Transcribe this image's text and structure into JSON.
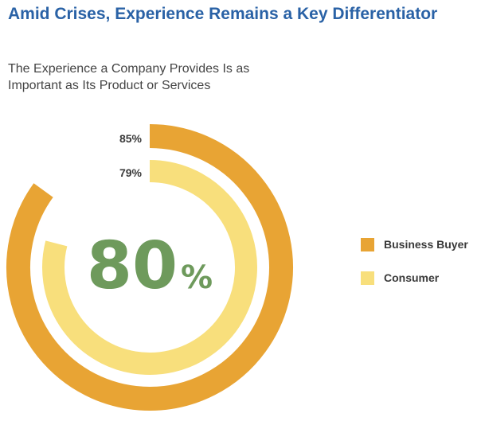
{
  "title": "Amid Crises, Experience Remains a Key Differentiator",
  "subtitle": "The Experience a Company Provides Is as Important as Its Product or Services",
  "center": {
    "value": "80",
    "unit": "%"
  },
  "colors": {
    "title": "#2a62a6",
    "business_buyer": "#e8a434",
    "consumer": "#f8df7c",
    "center_text": "#6e9a5c",
    "label_text": "#3a3a3a"
  },
  "chart_data": {
    "type": "radial-bar",
    "title": "The Experience a Company Provides Is as Important as Its Product or Services",
    "unit": "%",
    "max": 100,
    "series": [
      {
        "name": "Business Buyer",
        "value": 85,
        "label": "85%",
        "color": "#e8a434"
      },
      {
        "name": "Consumer",
        "value": 79,
        "label": "79%",
        "color": "#f8df7c"
      }
    ],
    "center_label": "80%",
    "legend_position": "right"
  }
}
